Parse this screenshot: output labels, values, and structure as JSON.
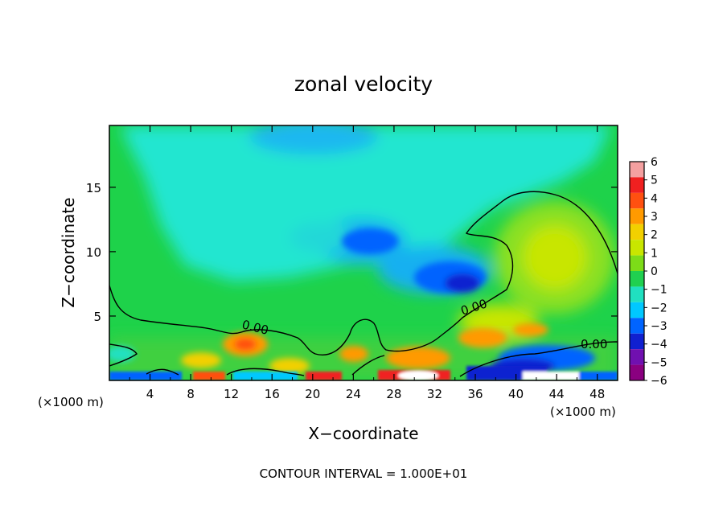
{
  "chart_data": {
    "type": "heatmap",
    "title": "zonal velocity",
    "xlabel": "X−coordinate",
    "ylabel": "Z−coordinate",
    "x_unit_label": "(×1000 m)",
    "z_unit_label": "(×1000 m)",
    "xlim": [
      0,
      50
    ],
    "ylim": [
      0,
      19.8
    ],
    "x_ticks": [
      4,
      8,
      12,
      16,
      20,
      24,
      28,
      32,
      36,
      40,
      44,
      48
    ],
    "y_ticks": [
      5,
      10,
      15
    ],
    "footer": "CONTOUR INTERVAL = 1.000E+01",
    "contour_labels": [
      {
        "text": "0.00",
        "x": 14.5,
        "z": 4.2
      },
      {
        "text": "0.00",
        "x": 36.5,
        "z": 5.5
      },
      {
        "text": "0.00",
        "x": 47.8,
        "z": 2.9
      }
    ],
    "colorbar": {
      "levels": [
        6,
        5,
        4,
        3,
        2,
        1,
        0,
        -1,
        -2,
        -3,
        -4,
        -5,
        -6
      ],
      "labels": [
        "6",
        "5",
        "4",
        "3",
        "2",
        "1",
        "0",
        "−1",
        "−2",
        "−3",
        "−4",
        "−5",
        "−6"
      ],
      "colors": [
        "#f4a0a0",
        "#f02020",
        "#ff5010",
        "#ff9a00",
        "#f2d000",
        "#c8e600",
        "#7ddc18",
        "#20d050",
        "#20e0c0",
        "#00c8ff",
        "#0064ff",
        "#1020d0",
        "#7010b0",
        "#8a0080"
      ]
    }
  }
}
